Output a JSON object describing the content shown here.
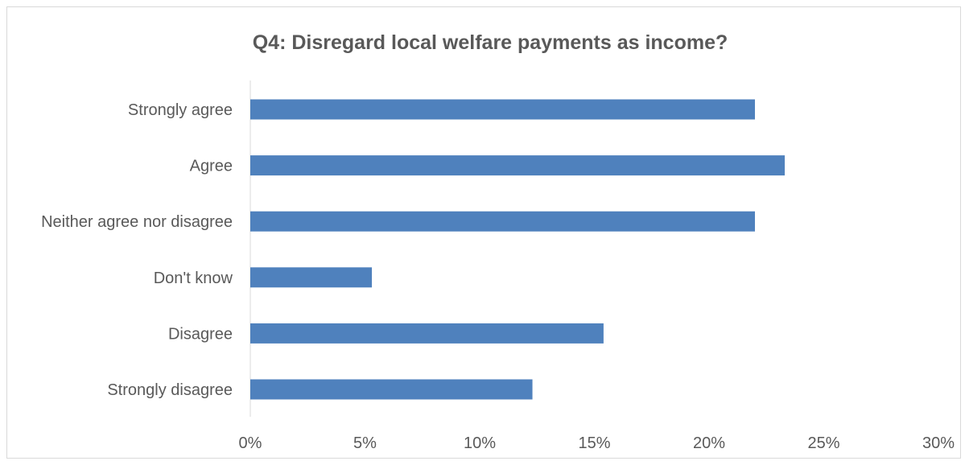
{
  "chart_data": {
    "type": "bar",
    "orientation": "horizontal",
    "title": "Q4: Disregard local welfare payments as income?",
    "categories": [
      "Strongly agree",
      "Agree",
      "Neither agree nor disagree",
      "Don't know",
      "Disagree",
      "Strongly disagree"
    ],
    "values": [
      22,
      23.3,
      22,
      5.3,
      15.4,
      12.3
    ],
    "value_unit": "%",
    "xlim": [
      0,
      30
    ],
    "xticks": [
      0,
      5,
      10,
      15,
      20,
      25,
      30
    ],
    "xtick_labels": [
      "0%",
      "5%",
      "10%",
      "15%",
      "20%",
      "25%",
      "30%"
    ],
    "xlabel": "",
    "ylabel": "",
    "bar_color": "#4f81bd",
    "grid": false,
    "legend": "none"
  }
}
